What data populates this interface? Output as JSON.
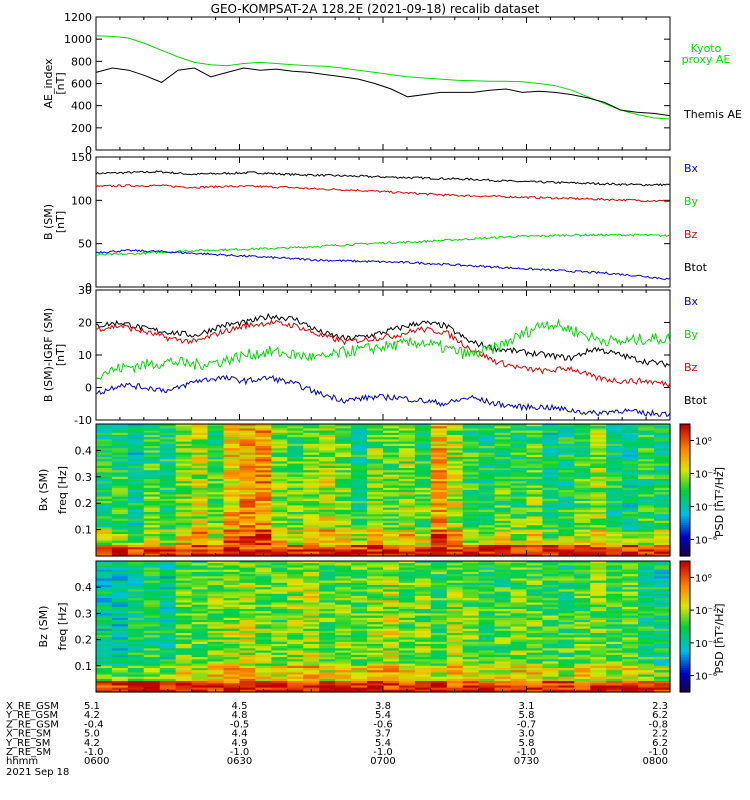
{
  "title": "GEO-KOMPSAT-2A 128.2E (2021-09-18) recalib dataset",
  "colors": {
    "black": "#000000",
    "green": "#00dd00",
    "blue": "#0000cc",
    "red": "#dd0000"
  },
  "chart_data": [
    {
      "type": "line",
      "panel": "ae",
      "ylabel": "AE_index",
      "yunit": "[nT]",
      "ylim": [
        0,
        1200
      ],
      "yticks": [
        "0",
        "200",
        "400",
        "600",
        "800",
        "1000",
        "1200"
      ],
      "x": [
        "06:00",
        "06:02",
        "06:04",
        "06:06",
        "06:08",
        "06:10",
        "06:12",
        "06:14",
        "06:16",
        "06:18",
        "06:20",
        "06:22",
        "06:24",
        "06:26",
        "06:28",
        "06:30",
        "06:33",
        "06:36",
        "06:40",
        "06:43",
        "06:46",
        "06:50",
        "06:55",
        "07:00",
        "07:05",
        "07:10",
        "07:15",
        "07:20",
        "07:25",
        "07:30",
        "07:35",
        "07:40",
        "07:45",
        "07:50",
        "07:55",
        "08:00"
      ],
      "series": [
        {
          "name": "Kyoto proxy AE",
          "legend_lines": [
            "Kyoto",
            "proxy AE"
          ],
          "color": "#00dd00",
          "values": [
            1030,
            1025,
            1010,
            960,
            900,
            840,
            790,
            770,
            760,
            780,
            790,
            780,
            770,
            760,
            755,
            740,
            720,
            700,
            680,
            660,
            650,
            640,
            630,
            625,
            620,
            620,
            615,
            600,
            580,
            540,
            480,
            420,
            360,
            320,
            290,
            280
          ]
        },
        {
          "name": "Themis AE",
          "legend_lines": [
            "Themis AE"
          ],
          "color": "#000000",
          "values": [
            700,
            740,
            720,
            670,
            610,
            720,
            740,
            660,
            700,
            740,
            720,
            730,
            710,
            700,
            680,
            660,
            640,
            600,
            550,
            480,
            500,
            520,
            520,
            520,
            540,
            550,
            520,
            530,
            520,
            500,
            470,
            430,
            360,
            340,
            330,
            310
          ]
        }
      ]
    },
    {
      "type": "line",
      "panel": "bsm",
      "ylabel": "B (SM)",
      "yunit": "[nT]",
      "ylim": [
        0,
        150
      ],
      "yticks": [
        "0",
        "50",
        "100",
        "150"
      ],
      "legend": [
        {
          "label": "Bx",
          "color": "#0000cc"
        },
        {
          "label": "By",
          "color": "#00dd00"
        },
        {
          "label": "Bz",
          "color": "#dd0000"
        },
        {
          "label": "Btot",
          "color": "#000000"
        }
      ],
      "series": [
        {
          "name": "Btot",
          "color": "#000000",
          "values": [
            131,
            132,
            133,
            130,
            131,
            132,
            130,
            129,
            128,
            127,
            126,
            125,
            124,
            122,
            121,
            120,
            119,
            118,
            118
          ]
        },
        {
          "name": "Bz",
          "color": "#dd0000",
          "values": [
            116,
            117,
            117,
            115,
            116,
            116,
            115,
            113,
            112,
            110,
            108,
            106,
            105,
            104,
            103,
            102,
            101,
            100,
            99
          ]
        },
        {
          "name": "By",
          "color": "#00dd00",
          "values": [
            37,
            38,
            40,
            42,
            43,
            44,
            45,
            47,
            49,
            51,
            52,
            54,
            56,
            58,
            59,
            60,
            60,
            60,
            59
          ]
        },
        {
          "name": "Bx",
          "color": "#0000cc",
          "values": [
            40,
            42,
            41,
            39,
            37,
            35,
            33,
            31,
            30,
            29,
            28,
            26,
            24,
            22,
            20,
            18,
            16,
            13,
            9
          ]
        }
      ]
    },
    {
      "type": "line",
      "panel": "bigrf",
      "ylabel": "B (SM)-IGRF (SM)",
      "yunit": "[nT]",
      "ylim": [
        -10,
        30
      ],
      "yticks": [
        "-10",
        "0",
        "10",
        "20",
        "30"
      ],
      "legend": [
        {
          "label": "Bx",
          "color": "#0000cc"
        },
        {
          "label": "By",
          "color": "#00dd00"
        },
        {
          "label": "Bz",
          "color": "#dd0000"
        },
        {
          "label": "Btot",
          "color": "#000000"
        }
      ],
      "series": [
        {
          "name": "Btot",
          "color": "#000000",
          "values": [
            19,
            20,
            18,
            17,
            16,
            19,
            20,
            22,
            21,
            17,
            15,
            16,
            18,
            20,
            19,
            14,
            12,
            11,
            10,
            9,
            12,
            10,
            8,
            7
          ]
        },
        {
          "name": "Bz",
          "color": "#dd0000",
          "values": [
            18,
            19,
            17,
            15,
            14,
            17,
            19,
            20,
            19,
            16,
            14,
            15,
            16,
            18,
            17,
            12,
            8,
            6,
            5,
            6,
            3,
            2,
            2,
            1
          ]
        },
        {
          "name": "By",
          "color": "#00dd00",
          "values": [
            4,
            6,
            7,
            8,
            7,
            8,
            10,
            11,
            10,
            9,
            11,
            12,
            13,
            14,
            12,
            10,
            12,
            16,
            20,
            18,
            15,
            14,
            15,
            15
          ]
        },
        {
          "name": "Bx",
          "color": "#0000cc",
          "values": [
            -2,
            1,
            0,
            -1,
            2,
            3,
            2,
            3,
            1,
            -2,
            -4,
            -3,
            -3,
            -4,
            -5,
            -3,
            -5,
            -6,
            -6,
            -7,
            -8,
            -7,
            -8,
            -8
          ]
        }
      ]
    },
    {
      "type": "heatmap",
      "panel": "specbx",
      "ylabel": "Bx (SM)",
      "yunit": "freq [Hz]",
      "ylim": [
        0,
        0.5
      ],
      "yticks": [
        "0.1",
        "0.2",
        "0.3",
        "0.4"
      ],
      "colorbar_label": "PSD",
      "colorbar_unit": "[nT²/Hz]",
      "colorbar_ticks": [
        "10⁰",
        "10⁻²",
        "10⁻⁴",
        "10⁻⁶"
      ],
      "colorbar_range_exp": [
        -7,
        1
      ],
      "col_strength": [
        0.3,
        0.35,
        0.2,
        0.4,
        0.3,
        0.55,
        0.6,
        0.4,
        0.75,
        0.85,
        0.9,
        0.5,
        0.4,
        0.55,
        0.6,
        0.45,
        0.3,
        0.5,
        0.45,
        0.55,
        0.4,
        0.85,
        0.6,
        0.35,
        0.3,
        0.4,
        0.35,
        0.45,
        0.25,
        0.3,
        0.4,
        0.55,
        0.3,
        0.2,
        0.35,
        0.3
      ]
    },
    {
      "type": "heatmap",
      "panel": "specbz",
      "ylabel": "Bz (SM)",
      "yunit": "freq [Hz]",
      "ylim": [
        0,
        0.5
      ],
      "yticks": [
        "0.1",
        "0.2",
        "0.3",
        "0.4"
      ],
      "colorbar_label": "PSD",
      "colorbar_unit": "[nT²/Hz]",
      "colorbar_ticks": [
        "10⁰",
        "10⁻²",
        "10⁻⁴",
        "10⁻⁶"
      ],
      "colorbar_range_exp": [
        -7,
        1
      ],
      "col_strength": [
        0.2,
        0.15,
        0.25,
        0.3,
        0.2,
        0.45,
        0.4,
        0.5,
        0.55,
        0.6,
        0.5,
        0.45,
        0.55,
        0.6,
        0.4,
        0.5,
        0.45,
        0.55,
        0.6,
        0.45,
        0.5,
        0.4,
        0.55,
        0.45,
        0.35,
        0.4,
        0.5,
        0.45,
        0.4,
        0.35,
        0.45,
        0.5,
        0.4,
        0.45,
        0.3,
        0.25
      ]
    }
  ],
  "ephemeris": {
    "labels": [
      "X_RE_GSM",
      "Y_RE_GSM",
      "Z_RE_GSM",
      "X_RE_SM",
      "Y_RE_SM",
      "Z_RE_SM",
      "hhmm"
    ],
    "columns": [
      [
        "5.1",
        "4.2",
        "-0.4",
        "5.0",
        "4.2",
        "-1.0",
        "0600"
      ],
      [
        "4.5",
        "4.8",
        "-0.5",
        "4.4",
        "4.9",
        "-1.0",
        "0630"
      ],
      [
        "3.8",
        "5.4",
        "-0.6",
        "3.7",
        "5.4",
        "-1.0",
        "0700"
      ],
      [
        "3.1",
        "5.8",
        "-0.7",
        "3.0",
        "5.8",
        "-1.0",
        "0730"
      ],
      [
        "2.3",
        "6.2",
        "-0.8",
        "2.2",
        "6.2",
        "-1.0",
        "0800"
      ]
    ],
    "date": "2021 Sep 18"
  }
}
